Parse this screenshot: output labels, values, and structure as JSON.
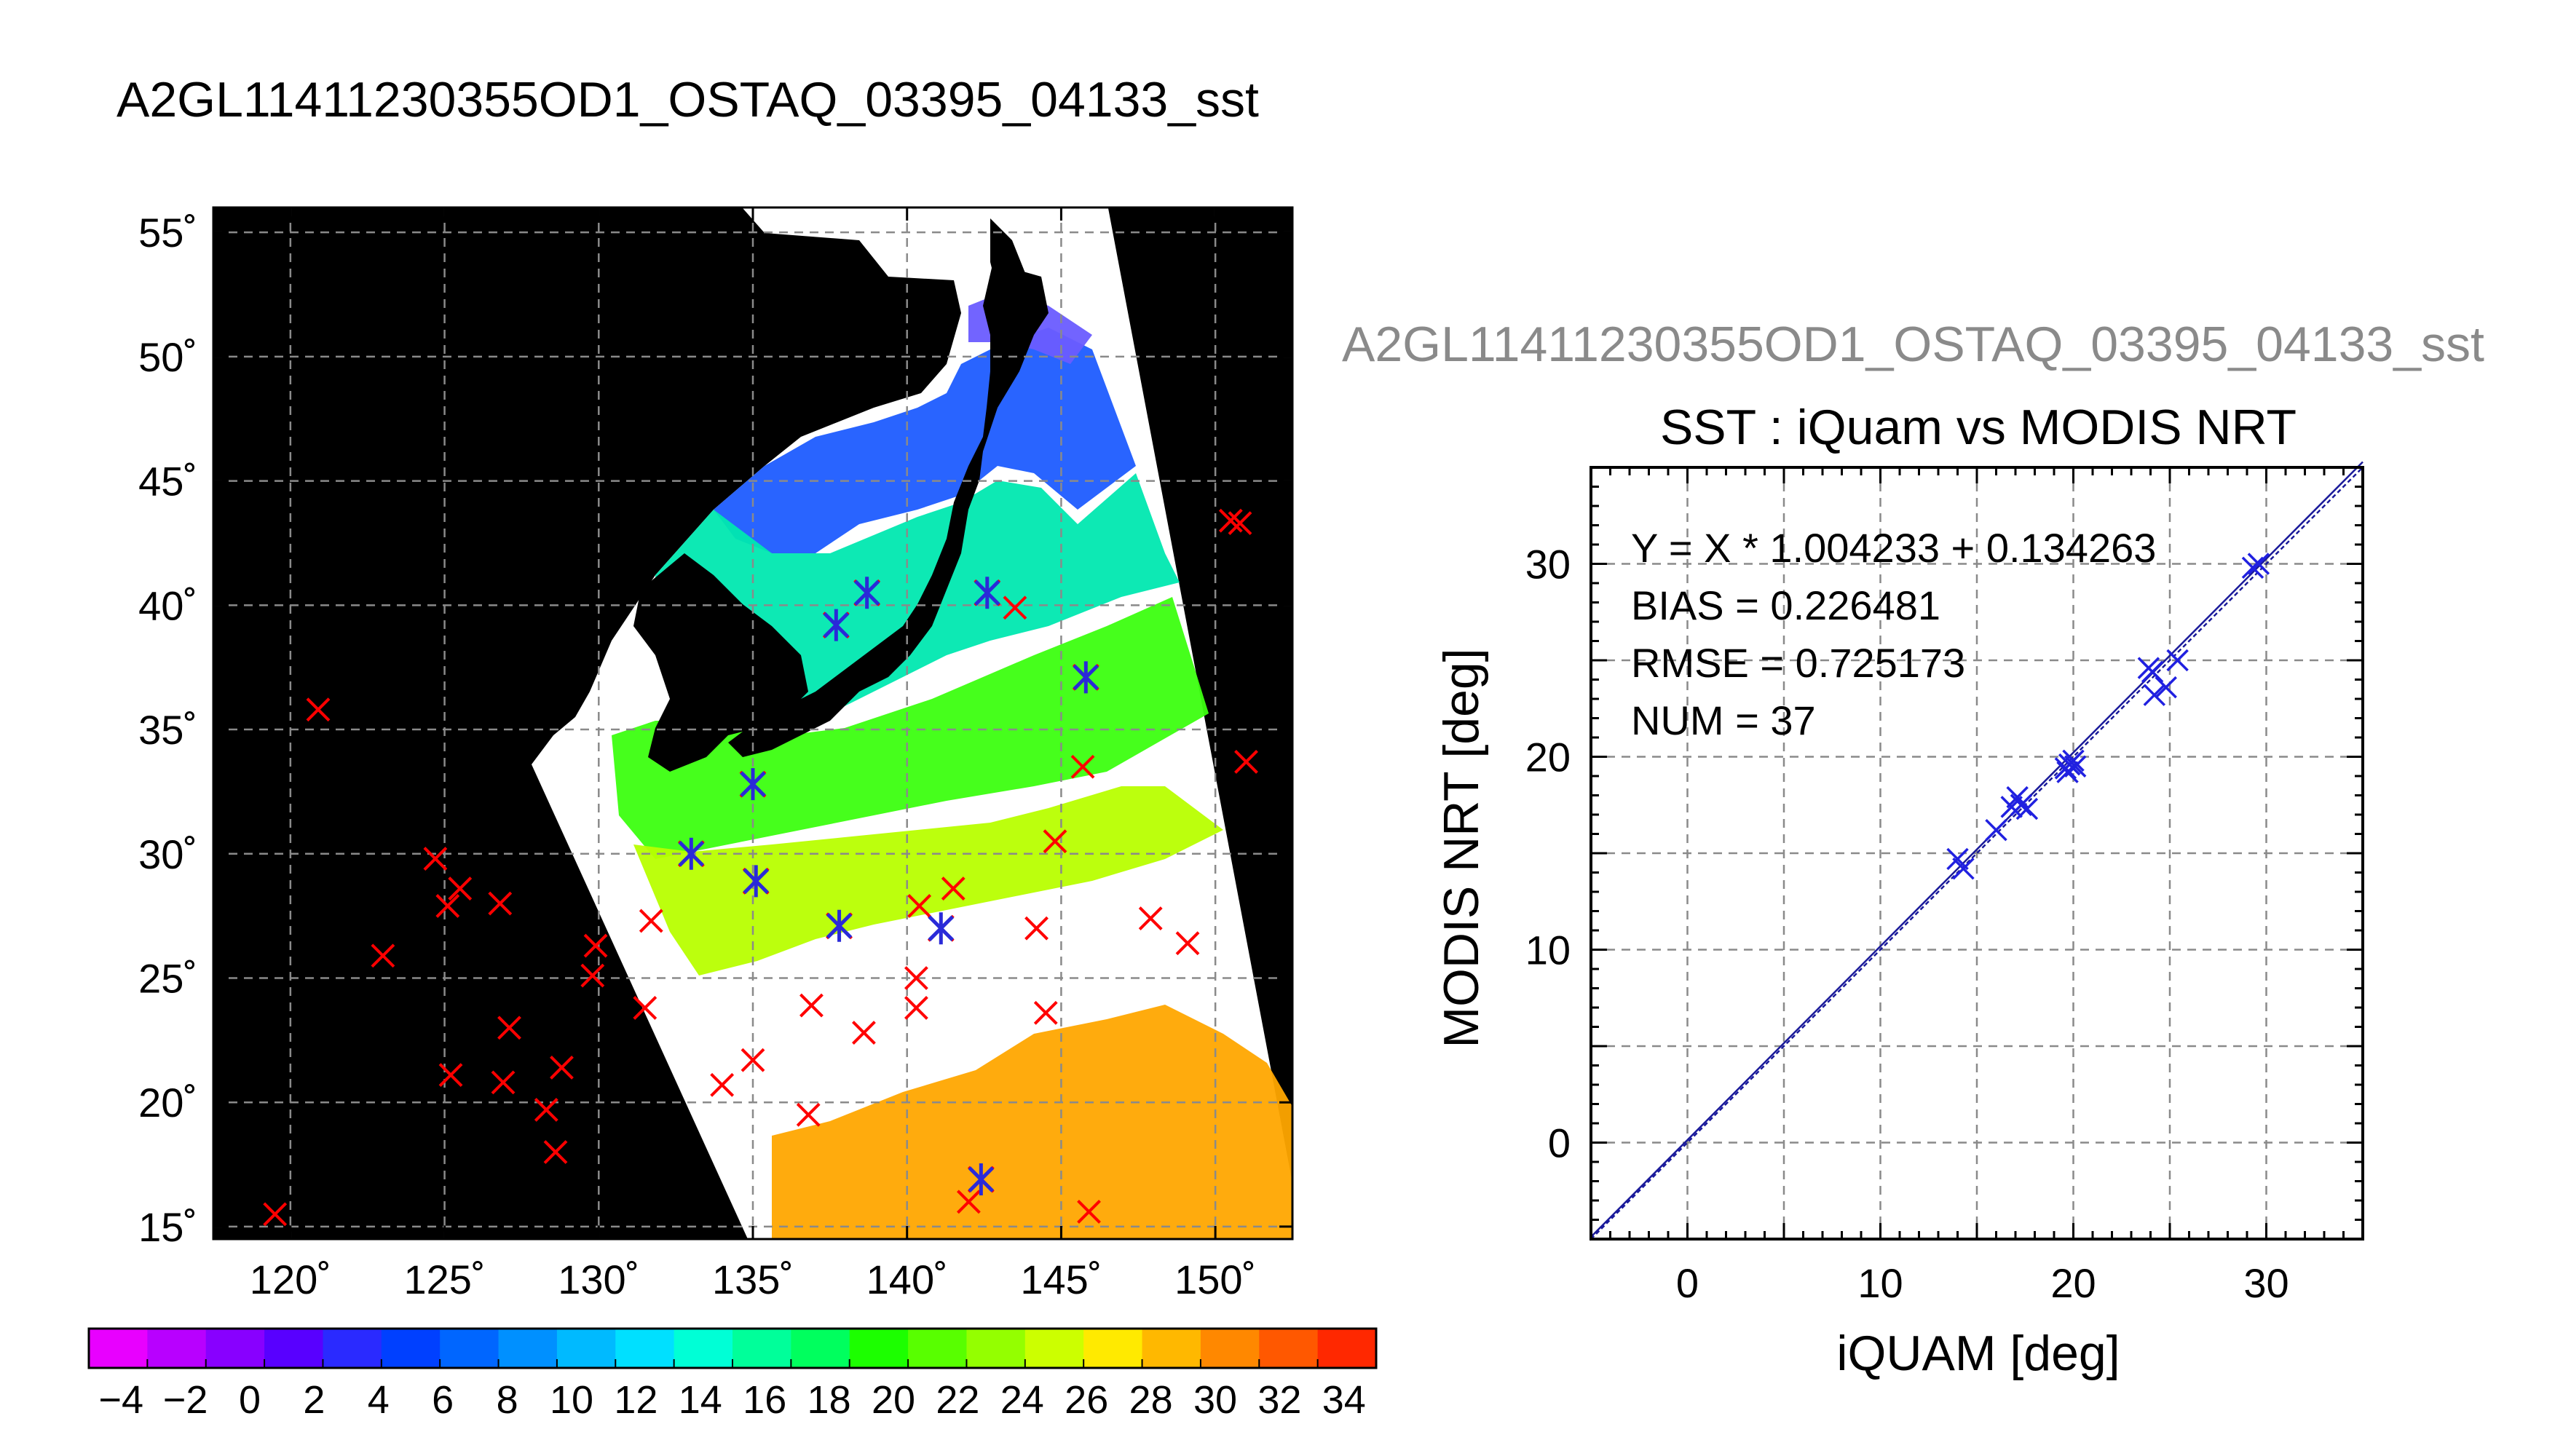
{
  "page_title": "A2GL11411230355OD1_OSTAQ_03395_04133_sst",
  "map": {
    "lon_ticks": [
      "120˚",
      "125˚",
      "130˚",
      "135˚",
      "140˚",
      "145˚",
      "150˚"
    ],
    "lat_ticks": [
      "55˚",
      "50˚",
      "45˚",
      "40˚",
      "35˚",
      "30˚",
      "25˚",
      "20˚",
      "15˚"
    ],
    "lon_range": [
      117.5,
      152.5
    ],
    "lat_range": [
      14.5,
      56
    ],
    "colorbar_labels": [
      "−4",
      "−2",
      "0",
      "2",
      "4",
      "6",
      "8",
      "10",
      "12",
      "14",
      "16",
      "18",
      "20",
      "22",
      "24",
      "26",
      "28",
      "30",
      "32",
      "34"
    ],
    "colorbar_range": [
      -5,
      35
    ],
    "colorbar_colors": [
      "#e800ff",
      "#b800ff",
      "#8800ff",
      "#5800ff",
      "#2a2aff",
      "#0040ff",
      "#0066ff",
      "#0090ff",
      "#00baff",
      "#00e0ff",
      "#00ffd6",
      "#00ff9a",
      "#00ff5e",
      "#1cff00",
      "#58ff00",
      "#94ff00",
      "#ccff00",
      "#ffea00",
      "#ffb800",
      "#ff8800",
      "#ff5800",
      "#ff2800"
    ],
    "red_markers": [
      [
        120.9,
        35.8
      ],
      [
        119.5,
        15.5
      ],
      [
        123.0,
        25.9
      ],
      [
        124.7,
        29.8
      ],
      [
        125.5,
        28.6
      ],
      [
        125.1,
        27.9
      ],
      [
        126.8,
        28.0
      ],
      [
        125.2,
        21.1
      ],
      [
        126.9,
        20.8
      ],
      [
        127.1,
        23.0
      ],
      [
        128.3,
        19.7
      ],
      [
        128.6,
        18.0
      ],
      [
        128.8,
        21.4
      ],
      [
        129.9,
        26.3
      ],
      [
        129.8,
        25.1
      ],
      [
        131.5,
        23.8
      ],
      [
        131.7,
        27.3
      ],
      [
        134.0,
        20.7
      ],
      [
        135.0,
        21.7
      ],
      [
        136.8,
        19.5
      ],
      [
        136.9,
        23.9
      ],
      [
        138.6,
        22.8
      ],
      [
        140.3,
        25.0
      ],
      [
        140.3,
        23.8
      ],
      [
        140.4,
        27.9
      ],
      [
        141.5,
        28.6
      ],
      [
        144.2,
        27.0
      ],
      [
        144.5,
        23.6
      ],
      [
        144.8,
        30.5
      ],
      [
        145.7,
        33.5
      ],
      [
        145.9,
        15.6
      ],
      [
        147.9,
        27.4
      ],
      [
        149.1,
        26.4
      ],
      [
        150.5,
        43.4
      ],
      [
        150.8,
        43.3
      ],
      [
        151.0,
        33.7
      ],
      [
        142.0,
        16.0
      ],
      [
        143.5,
        39.9
      ]
    ],
    "blue_markers": [
      [
        133.0,
        30.0
      ],
      [
        135.0,
        32.8
      ],
      [
        135.1,
        28.9
      ],
      [
        137.8,
        27.1
      ],
      [
        137.7,
        39.2
      ],
      [
        138.7,
        40.5
      ],
      [
        141.1,
        27.0
      ],
      [
        142.6,
        40.5
      ],
      [
        145.8,
        37.1
      ],
      [
        142.4,
        16.9
      ]
    ],
    "title_label": "",
    "lon_label": "",
    "lat_label": ""
  },
  "chart_data": {
    "type": "scatter",
    "title": "SST : iQuam vs MODIS NRT",
    "supertitle": "A2GL11411230355OD1_OSTAQ_03395_04133_sst",
    "xlabel": "iQUAM [deg]",
    "ylabel": "MODIS NRT [deg]",
    "xlim": [
      -5,
      35
    ],
    "ylim": [
      -5,
      35
    ],
    "xticks": [
      "0",
      "10",
      "20",
      "30"
    ],
    "yticks": [
      "0",
      "10",
      "20",
      "30"
    ],
    "grid": true,
    "stats": [
      "Y = X * 1.004233 + 0.134263",
      "BIAS = 0.226481",
      "RMSE = 0.725173",
      "NUM = 37"
    ],
    "fit": {
      "slope": 1.004233,
      "intercept": 0.134263
    },
    "points": [
      [
        14.0,
        14.7
      ],
      [
        14.3,
        14.2
      ],
      [
        16.0,
        16.2
      ],
      [
        16.8,
        17.4
      ],
      [
        17.1,
        17.9
      ],
      [
        17.3,
        17.5
      ],
      [
        17.6,
        17.3
      ],
      [
        19.6,
        19.4
      ],
      [
        19.8,
        19.6
      ],
      [
        20.0,
        19.8
      ],
      [
        20.1,
        19.5
      ],
      [
        19.7,
        19.2
      ],
      [
        23.9,
        24.6
      ],
      [
        24.1,
        24.4
      ],
      [
        24.2,
        23.2
      ],
      [
        24.8,
        23.6
      ],
      [
        25.4,
        25.0
      ],
      [
        29.3,
        29.8
      ],
      [
        29.6,
        30.0
      ]
    ],
    "color_markers": "#2020e0",
    "color_lines": "#1a1a9a"
  }
}
